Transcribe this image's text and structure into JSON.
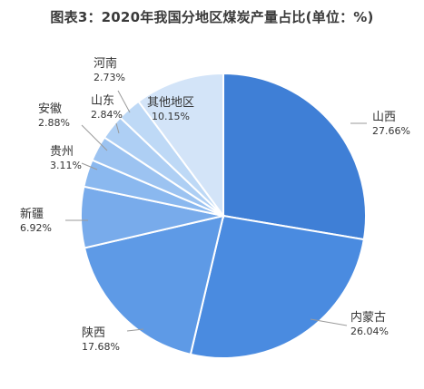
{
  "chart_data": {
    "type": "pie",
    "title": "图表3：2020年我国分地区煤炭产量占比(单位：%)",
    "unit": "%",
    "slices": [
      {
        "name": "山西",
        "value": 27.66,
        "display": "27.66%",
        "color": "#3f7fd6"
      },
      {
        "name": "内蒙古",
        "value": 26.04,
        "display": "26.04%",
        "color": "#4a8be0"
      },
      {
        "name": "陕西",
        "value": 17.68,
        "display": "17.68%",
        "color": "#5e9ae6"
      },
      {
        "name": "新疆",
        "value": 6.92,
        "display": "6.92%",
        "color": "#78abeb"
      },
      {
        "name": "贵州",
        "value": 3.11,
        "display": "3.11%",
        "color": "#8ab8ef"
      },
      {
        "name": "安徽",
        "value": 2.88,
        "display": "2.88%",
        "color": "#9cc3f1"
      },
      {
        "name": "山东",
        "value": 2.84,
        "display": "2.84%",
        "color": "#aecff4"
      },
      {
        "name": "河南",
        "value": 2.73,
        "display": "2.73%",
        "color": "#bed9f6"
      },
      {
        "name": "其他地区",
        "value": 10.15,
        "display": "10.15%",
        "color": "#d3e4f8"
      }
    ]
  }
}
